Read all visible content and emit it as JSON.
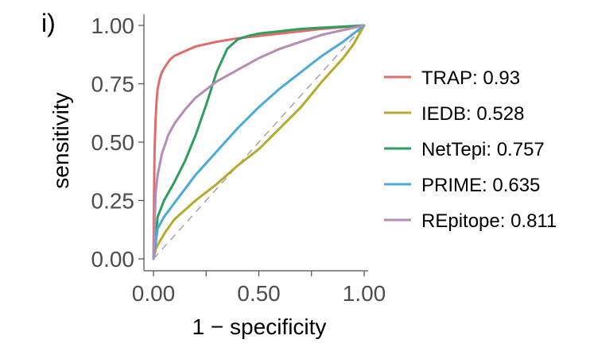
{
  "panel_label": "i)",
  "chart_data": {
    "type": "line",
    "xlabel": "1 − specificity",
    "ylabel": "sensitivity",
    "xlim": [
      0,
      1
    ],
    "ylim": [
      0,
      1
    ],
    "x_ticks": [
      0,
      0.5,
      1
    ],
    "x_tick_labels": [
      "0.00",
      "0.50",
      "1.00"
    ],
    "x_minor_ticks": [
      0.25,
      0.75
    ],
    "y_ticks": [
      0,
      0.25,
      0.5,
      0.75,
      1
    ],
    "y_tick_labels": [
      "0.00",
      "0.25",
      "0.50",
      "0.75",
      "1.00"
    ],
    "grid": false,
    "legend_position": "right",
    "reference_line": {
      "x": [
        0,
        1
      ],
      "y": [
        0,
        1
      ],
      "color": "#999999",
      "style": "dashed"
    },
    "series": [
      {
        "name": "TRAP: 0.93",
        "color": "#E06C6C",
        "x": [
          0,
          0.005,
          0.01,
          0.015,
          0.02,
          0.03,
          0.04,
          0.06,
          0.08,
          0.1,
          0.15,
          0.2,
          0.3,
          0.4,
          0.5,
          0.6,
          0.7,
          0.8,
          0.9,
          1.0
        ],
        "y": [
          0,
          0.45,
          0.6,
          0.68,
          0.73,
          0.77,
          0.8,
          0.83,
          0.855,
          0.87,
          0.89,
          0.91,
          0.93,
          0.945,
          0.955,
          0.965,
          0.975,
          0.985,
          0.993,
          1.0
        ]
      },
      {
        "name": "IEDB: 0.528",
        "color": "#B5AA2A",
        "x": [
          0,
          0.01,
          0.02,
          0.04,
          0.06,
          0.1,
          0.15,
          0.2,
          0.3,
          0.4,
          0.5,
          0.6,
          0.7,
          0.8,
          0.9,
          0.95,
          1.0
        ],
        "y": [
          0,
          0.04,
          0.06,
          0.09,
          0.12,
          0.17,
          0.21,
          0.25,
          0.32,
          0.4,
          0.47,
          0.56,
          0.65,
          0.76,
          0.86,
          0.92,
          1.0
        ]
      },
      {
        "name": "NetTepi: 0.757",
        "color": "#2E9E5F",
        "x": [
          0,
          0.02,
          0.05,
          0.1,
          0.15,
          0.2,
          0.25,
          0.3,
          0.35,
          0.4,
          0.45,
          0.5,
          0.6,
          0.7,
          0.8,
          0.9,
          1.0
        ],
        "y": [
          0,
          0.18,
          0.25,
          0.33,
          0.42,
          0.53,
          0.66,
          0.8,
          0.9,
          0.94,
          0.955,
          0.965,
          0.975,
          0.985,
          0.99,
          0.995,
          1.0
        ]
      },
      {
        "name": "PRIME: 0.635",
        "color": "#4AAAD8",
        "x": [
          0,
          0.02,
          0.05,
          0.1,
          0.15,
          0.2,
          0.3,
          0.4,
          0.5,
          0.6,
          0.7,
          0.8,
          0.9,
          1.0
        ],
        "y": [
          0,
          0.13,
          0.18,
          0.24,
          0.3,
          0.36,
          0.46,
          0.56,
          0.65,
          0.73,
          0.8,
          0.87,
          0.93,
          1.0
        ]
      },
      {
        "name": "REpitope: 0.811",
        "color": "#B48DB5",
        "x": [
          0,
          0.01,
          0.02,
          0.04,
          0.07,
          0.1,
          0.15,
          0.2,
          0.3,
          0.4,
          0.5,
          0.6,
          0.7,
          0.8,
          0.9,
          1.0
        ],
        "y": [
          0,
          0.28,
          0.36,
          0.45,
          0.53,
          0.58,
          0.64,
          0.69,
          0.76,
          0.81,
          0.86,
          0.9,
          0.93,
          0.96,
          0.98,
          1.0
        ]
      }
    ]
  }
}
